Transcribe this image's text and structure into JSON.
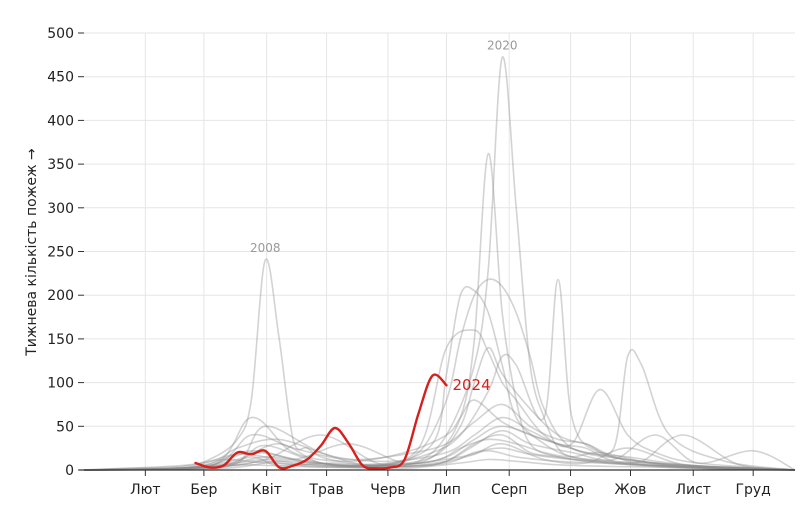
{
  "chart_data": {
    "type": "line",
    "title": "",
    "xlabel": "",
    "ylabel": "Тижнева кількість пожеж →",
    "ylim": [
      0,
      500
    ],
    "yticks": [
      0,
      50,
      100,
      150,
      200,
      250,
      300,
      350,
      400,
      450,
      500
    ],
    "x_unit": "week of year",
    "xlim": [
      1,
      52
    ],
    "month_ticks": [
      {
        "label": "Лют",
        "week": 5.4
      },
      {
        "label": "Бер",
        "week": 9.6
      },
      {
        "label": "Квіт",
        "week": 14.1
      },
      {
        "label": "Трав",
        "week": 18.4
      },
      {
        "label": "Черв",
        "week": 22.8
      },
      {
        "label": "Лип",
        "week": 27.0
      },
      {
        "label": "Серп",
        "week": 31.5
      },
      {
        "label": "Вер",
        "week": 35.9
      },
      {
        "label": "Жов",
        "week": 40.2
      },
      {
        "label": "Лист",
        "week": 44.7
      },
      {
        "label": "Груд",
        "week": 49.0
      }
    ],
    "grid": true,
    "colors": {
      "background_series": "#8c8c8c",
      "current_series": "#d6201c",
      "grid": "#e6e6e6",
      "axis": "#333333"
    },
    "annotations": [
      {
        "text": "2008",
        "series": "2008"
      },
      {
        "text": "2020",
        "series": "2020"
      }
    ],
    "highlight": {
      "name": "2024",
      "label": "2024",
      "x": [
        9,
        10,
        11,
        12,
        13,
        14,
        15,
        16,
        17,
        18,
        19,
        20,
        21,
        22,
        23,
        24,
        25,
        26,
        27,
        28,
        29,
        30
      ],
      "values": [
        8,
        3,
        5,
        20,
        18,
        22,
        3,
        5,
        12,
        28,
        48,
        30,
        5,
        2,
        3,
        12,
        65,
        108,
        97,
        null,
        null,
        null
      ]
    },
    "series": [
      {
        "name": "2008",
        "x": [
          1,
          4,
          8,
          10,
          12,
          13,
          14,
          15,
          16,
          17,
          18,
          20,
          22,
          25,
          27,
          29,
          31,
          33,
          35,
          37,
          40,
          43,
          46,
          50,
          52
        ],
        "values": [
          0,
          2,
          4,
          12,
          35,
          80,
          240,
          150,
          35,
          25,
          15,
          8,
          5,
          4,
          10,
          30,
          40,
          20,
          15,
          10,
          6,
          3,
          2,
          1,
          0
        ]
      },
      {
        "name": "2020",
        "x": [
          1,
          5,
          9,
          12,
          14,
          17,
          20,
          23,
          25,
          27,
          29,
          30,
          31,
          32,
          33,
          34,
          35,
          36,
          38,
          41,
          44,
          48,
          52
        ],
        "values": [
          0,
          1,
          3,
          8,
          12,
          6,
          4,
          6,
          10,
          40,
          120,
          230,
          472,
          300,
          120,
          60,
          25,
          15,
          10,
          6,
          4,
          2,
          0
        ]
      },
      {
        "name": "s3",
        "x": [
          1,
          6,
          9,
          12,
          14,
          17,
          20,
          23,
          26,
          28,
          29,
          30,
          31,
          32,
          33,
          35,
          38,
          41,
          44,
          48,
          52
        ],
        "values": [
          0,
          1,
          3,
          6,
          10,
          4,
          3,
          4,
          15,
          60,
          150,
          362,
          180,
          80,
          30,
          15,
          10,
          6,
          3,
          1,
          0
        ]
      },
      {
        "name": "s4",
        "x": [
          1,
          8,
          12,
          14,
          18,
          22,
          26,
          27,
          28,
          29,
          30,
          31,
          32,
          34,
          36,
          39,
          43,
          47,
          52
        ],
        "values": [
          0,
          2,
          8,
          50,
          20,
          6,
          30,
          110,
          200,
          205,
          180,
          120,
          60,
          30,
          15,
          10,
          5,
          2,
          0
        ]
      },
      {
        "name": "s5",
        "x": [
          1,
          8,
          12,
          14,
          18,
          22,
          25,
          27,
          28,
          29,
          30,
          31,
          32,
          33,
          34,
          36,
          40,
          44,
          52
        ],
        "values": [
          0,
          1,
          10,
          28,
          8,
          5,
          20,
          80,
          150,
          200,
          218,
          210,
          180,
          130,
          70,
          25,
          12,
          4,
          0
        ]
      },
      {
        "name": "s6",
        "x": [
          1,
          8,
          12,
          15,
          18,
          22,
          26,
          28,
          30,
          31,
          32,
          34,
          35,
          36,
          38,
          42,
          47,
          52
        ],
        "values": [
          0,
          2,
          12,
          30,
          8,
          4,
          20,
          40,
          90,
          130,
          120,
          60,
          218,
          60,
          20,
          8,
          3,
          0
        ]
      },
      {
        "name": "s7",
        "x": [
          1,
          10,
          14,
          18,
          22,
          26,
          28,
          29,
          30,
          31,
          33,
          35,
          37,
          39,
          40,
          41,
          43,
          47,
          52
        ],
        "values": [
          0,
          3,
          15,
          8,
          5,
          15,
          50,
          100,
          140,
          110,
          70,
          40,
          30,
          25,
          130,
          120,
          40,
          10,
          0
        ]
      },
      {
        "name": "s8",
        "x": [
          1,
          9,
          13,
          17,
          21,
          25,
          27,
          29,
          30,
          31,
          32,
          34,
          36,
          38,
          40,
          42,
          45,
          52
        ],
        "values": [
          0,
          2,
          20,
          10,
          6,
          25,
          140,
          160,
          135,
          100,
          80,
          40,
          30,
          92,
          40,
          20,
          8,
          0
        ]
      },
      {
        "name": "s9",
        "x": [
          1,
          10,
          13,
          16,
          20,
          24,
          27,
          28,
          29,
          31,
          33,
          35,
          37,
          39,
          41,
          44,
          48,
          52
        ],
        "values": [
          0,
          4,
          60,
          20,
          10,
          20,
          40,
          60,
          80,
          55,
          40,
          30,
          20,
          15,
          10,
          40,
          6,
          0
        ]
      },
      {
        "name": "s10",
        "x": [
          1,
          10,
          13,
          16,
          20,
          24,
          27,
          29,
          31,
          33,
          35,
          37,
          39,
          41,
          43,
          47,
          52
        ],
        "values": [
          0,
          5,
          40,
          25,
          12,
          18,
          30,
          55,
          75,
          50,
          35,
          30,
          15,
          10,
          6,
          3,
          0
        ]
      },
      {
        "name": "s11",
        "x": [
          1,
          9,
          12,
          15,
          19,
          23,
          27,
          29,
          31,
          33,
          35,
          37,
          39,
          42,
          46,
          52
        ],
        "values": [
          0,
          3,
          25,
          35,
          15,
          10,
          20,
          40,
          60,
          45,
          30,
          25,
          10,
          8,
          4,
          0
        ]
      },
      {
        "name": "s12",
        "x": [
          1,
          8,
          12,
          16,
          20,
          24,
          27,
          29,
          31,
          34,
          37,
          40,
          43,
          47,
          52
        ],
        "values": [
          0,
          2,
          18,
          12,
          30,
          8,
          15,
          35,
          50,
          35,
          20,
          15,
          8,
          3,
          0
        ]
      },
      {
        "name": "s13",
        "x": [
          1,
          10,
          14,
          18,
          22,
          25,
          27,
          29,
          31,
          33,
          36,
          39,
          42,
          45,
          49,
          52
        ],
        "values": [
          0,
          3,
          12,
          40,
          8,
          5,
          10,
          28,
          45,
          30,
          20,
          12,
          40,
          8,
          22,
          0
        ]
      },
      {
        "name": "s14",
        "x": [
          1,
          9,
          13,
          17,
          21,
          26,
          28,
          30,
          32,
          34,
          36,
          38,
          41,
          44,
          48,
          52
        ],
        "values": [
          0,
          4,
          22,
          8,
          5,
          10,
          25,
          35,
          30,
          20,
          15,
          20,
          10,
          5,
          3,
          0
        ]
      },
      {
        "name": "s15",
        "x": [
          1,
          11,
          15,
          19,
          23,
          27,
          29,
          31,
          33,
          36,
          39,
          42,
          46,
          52
        ],
        "values": [
          0,
          2,
          10,
          6,
          4,
          8,
          20,
          25,
          18,
          12,
          8,
          5,
          2,
          0
        ]
      },
      {
        "name": "s16",
        "x": [
          1,
          8,
          11,
          14,
          17,
          20,
          24,
          28,
          30,
          32,
          35,
          38,
          42,
          46,
          52
        ],
        "values": [
          0,
          5,
          12,
          8,
          6,
          4,
          6,
          15,
          22,
          15,
          10,
          8,
          5,
          2,
          0
        ]
      },
      {
        "name": "s17",
        "x": [
          1,
          10,
          13,
          15,
          19,
          23,
          27,
          29,
          31,
          34,
          37,
          40,
          44,
          49,
          52
        ],
        "values": [
          0,
          3,
          15,
          5,
          8,
          3,
          10,
          18,
          30,
          12,
          8,
          25,
          6,
          2,
          0
        ]
      },
      {
        "name": "s18",
        "x": [
          1,
          9,
          12,
          16,
          20,
          24,
          28,
          30,
          32,
          35,
          39,
          43,
          47,
          52
        ],
        "values": [
          0,
          1,
          6,
          4,
          3,
          2,
          8,
          12,
          10,
          6,
          4,
          3,
          1,
          0
        ]
      }
    ]
  }
}
